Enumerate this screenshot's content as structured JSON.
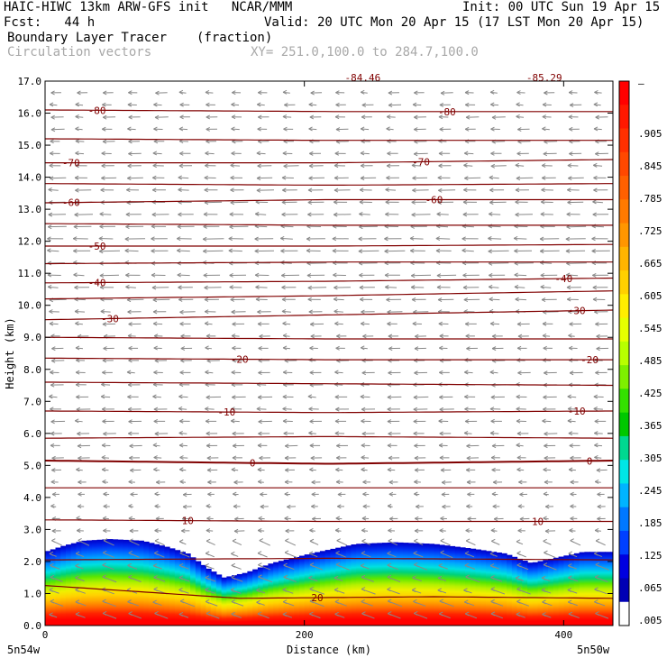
{
  "header": {
    "model_line": "HAIC-HIWC 13km ARW-GFS init   NCAR/MMM",
    "init_line": "Init: 00 UTC Sun 19 Apr 15",
    "fcst_line": "Fcst:   44 h",
    "valid_line": "Valid: 20 UTC Mon 20 Apr 15 (17 LST Mon 20 Apr 15)",
    "field_name": "Boundary Layer Tracer",
    "field_units": "(fraction)",
    "vector_name": "Circulation vectors",
    "xy_line": "XY= 251.0,100.0 to 284.7,100.0"
  },
  "chart_data": {
    "type": "heatmap",
    "xlabel": "Distance (km)",
    "ylabel": "Height (km)",
    "xlim": [
      0,
      438
    ],
    "ylim": [
      0,
      17
    ],
    "x_ticks": [
      "0",
      "200",
      "400"
    ],
    "x_tick_values": [
      0,
      200,
      400
    ],
    "x_end_labels": [
      "5n54w",
      "5n50w"
    ],
    "y_ticks": [
      "0.0",
      "1.0",
      "2.0",
      "3.0",
      "4.0",
      "5.0",
      "6.0",
      "7.0",
      "8.0",
      "9.0",
      "10.0",
      "11.0",
      "12.0",
      "13.0",
      "14.0",
      "15.0",
      "16.0",
      "17.0"
    ],
    "colorbar": {
      "top_label": "–",
      "labels": [
        ".905",
        ".845",
        ".785",
        ".725",
        ".665",
        ".605",
        ".545",
        ".485",
        ".425",
        ".365",
        ".305",
        ".245",
        ".185",
        ".125",
        ".065",
        ".005"
      ],
      "colors": [
        "#ff0000",
        "#ff1800",
        "#ff3000",
        "#ff4800",
        "#ff6000",
        "#ff7a00",
        "#ff9600",
        "#ffb400",
        "#ffd000",
        "#ffee00",
        "#e6ff00",
        "#b8ff00",
        "#7ef000",
        "#33e000",
        "#00c800",
        "#00d890",
        "#00e6e6",
        "#00b4ff",
        "#0078ff",
        "#0040ff",
        "#0000e0",
        "#0000b4",
        "#ffffff"
      ]
    },
    "tracer_top_km": [
      [
        0,
        2.3
      ],
      [
        15,
        2.5
      ],
      [
        30,
        2.65
      ],
      [
        50,
        2.7
      ],
      [
        75,
        2.65
      ],
      [
        95,
        2.45
      ],
      [
        110,
        2.25
      ],
      [
        125,
        1.8
      ],
      [
        138,
        1.5
      ],
      [
        155,
        1.65
      ],
      [
        175,
        1.95
      ],
      [
        205,
        2.25
      ],
      [
        240,
        2.55
      ],
      [
        270,
        2.6
      ],
      [
        300,
        2.55
      ],
      [
        330,
        2.4
      ],
      [
        355,
        2.25
      ],
      [
        375,
        1.95
      ],
      [
        392,
        2.1
      ],
      [
        415,
        2.3
      ],
      [
        438,
        2.3
      ]
    ],
    "isotherms": [
      {
        "value": 20,
        "label": "20",
        "x": [
          0,
          150,
          300,
          438
        ],
        "y": [
          1.25,
          0.85,
          0.9,
          0.85
        ],
        "label_x": [
          210,
          605
        ]
      },
      {
        "value": 15,
        "label": "",
        "x": [
          0,
          219,
          438
        ],
        "y": [
          2.05,
          2.1,
          2.05
        ],
        "label_x": []
      },
      {
        "value": 10,
        "label": "10",
        "x": [
          0,
          219,
          438
        ],
        "y": [
          3.3,
          3.25,
          3.25
        ],
        "label_x": [
          110,
          380
        ]
      },
      {
        "value": 5,
        "label": "",
        "x": [
          0,
          219,
          438
        ],
        "y": [
          4.3,
          4.3,
          4.3
        ],
        "label_x": []
      },
      {
        "value": 0,
        "label": "0",
        "x": [
          0,
          219,
          438
        ],
        "y": [
          5.15,
          5.05,
          5.15
        ],
        "label_x": [
          160,
          420
        ]
      },
      {
        "value": -5,
        "label": "",
        "x": [
          0,
          219,
          438
        ],
        "y": [
          5.85,
          5.9,
          5.85
        ],
        "label_x": []
      },
      {
        "value": -10,
        "label": "-10",
        "x": [
          0,
          219,
          438
        ],
        "y": [
          6.7,
          6.65,
          6.7
        ],
        "label_x": [
          140,
          410
        ]
      },
      {
        "value": -15,
        "label": "",
        "x": [
          0,
          219,
          438
        ],
        "y": [
          7.6,
          7.55,
          7.5
        ],
        "label_x": []
      },
      {
        "value": -20,
        "label": "-20",
        "x": [
          0,
          219,
          438
        ],
        "y": [
          8.35,
          8.3,
          8.3
        ],
        "label_x": [
          150,
          420
        ]
      },
      {
        "value": -25,
        "label": "",
        "x": [
          0,
          219,
          438
        ],
        "y": [
          9.0,
          8.95,
          8.95
        ],
        "label_x": []
      },
      {
        "value": -30,
        "label": "-30",
        "x": [
          0,
          219,
          438
        ],
        "y": [
          9.55,
          9.7,
          9.85
        ],
        "label_x": [
          50,
          410
        ]
      },
      {
        "value": -35,
        "label": "",
        "x": [
          0,
          219,
          438
        ],
        "y": [
          10.2,
          10.3,
          10.45
        ],
        "label_x": []
      },
      {
        "value": -40,
        "label": "-40",
        "x": [
          0,
          219,
          438
        ],
        "y": [
          10.7,
          10.75,
          10.85
        ],
        "label_x": [
          40,
          400
        ]
      },
      {
        "value": -45,
        "label": "",
        "x": [
          0,
          219,
          438
        ],
        "y": [
          11.3,
          11.35,
          11.35
        ],
        "label_x": []
      },
      {
        "value": -50,
        "label": "-50",
        "x": [
          0,
          219,
          438
        ],
        "y": [
          11.85,
          11.85,
          11.9
        ],
        "label_x": [
          40
        ]
      },
      {
        "value": -55,
        "label": "",
        "x": [
          0,
          219,
          438
        ],
        "y": [
          12.55,
          12.5,
          12.5
        ],
        "label_x": []
      },
      {
        "value": -60,
        "label": "-60",
        "x": [
          0,
          219,
          438
        ],
        "y": [
          13.2,
          13.3,
          13.3
        ],
        "label_x": [
          20,
          300
        ]
      },
      {
        "value": -65,
        "label": "",
        "x": [
          0,
          219,
          438
        ],
        "y": [
          13.8,
          13.75,
          13.8
        ],
        "label_x": []
      },
      {
        "value": -70,
        "label": "-70",
        "x": [
          0,
          219,
          438
        ],
        "y": [
          14.45,
          14.45,
          14.55
        ],
        "label_x": [
          20,
          290
        ]
      },
      {
        "value": -75,
        "label": "",
        "x": [
          0,
          219,
          438
        ],
        "y": [
          15.2,
          15.15,
          15.15
        ],
        "label_x": []
      },
      {
        "value": -80,
        "label": "-80",
        "x": [
          0,
          219,
          438
        ],
        "y": [
          16.1,
          16.05,
          16.05
        ],
        "label_x": [
          40,
          310
        ]
      }
    ],
    "extreme_labels": [
      {
        "text": "-84.46",
        "x": 245,
        "y": 17.05
      },
      {
        "text": "-85.29",
        "x": 385,
        "y": 17.05
      }
    ],
    "wind_u_by_height": [
      [
        0,
        -0.6
      ],
      [
        1,
        -0.7
      ],
      [
        2,
        -0.6
      ],
      [
        3,
        -0.4
      ],
      [
        4,
        -0.3
      ],
      [
        5,
        -0.5
      ],
      [
        6,
        -0.6
      ],
      [
        7,
        -0.7
      ],
      [
        8,
        -0.6
      ],
      [
        9,
        -0.5
      ],
      [
        10,
        -0.8
      ],
      [
        11,
        -1.0
      ],
      [
        12,
        -1.1
      ],
      [
        13,
        -0.9
      ],
      [
        14,
        -0.8
      ],
      [
        15,
        -0.6
      ],
      [
        16,
        -0.6
      ],
      [
        17,
        -0.5
      ]
    ]
  }
}
